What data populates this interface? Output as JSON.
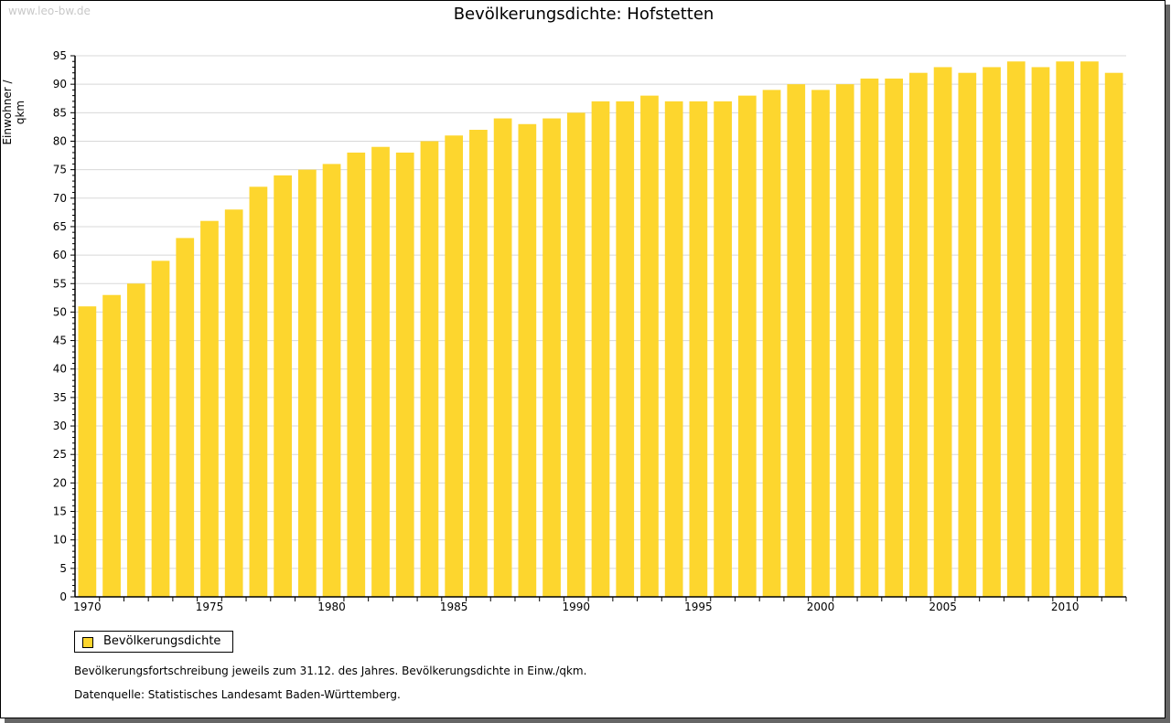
{
  "watermark": "www.leo-bw.de",
  "colors": {
    "bar": "#fdd62e",
    "grid": "#d8d8d8"
  },
  "chart_data": {
    "type": "bar",
    "title": "Bevölkerungsdichte: Hofstetten",
    "xlabel": "",
    "ylabel": "Einwohner / qkm",
    "ylim": [
      0,
      95
    ],
    "yticks": [
      0,
      5,
      10,
      15,
      20,
      25,
      30,
      35,
      40,
      45,
      50,
      55,
      60,
      65,
      70,
      75,
      80,
      85,
      90,
      95
    ],
    "xtick_labels": [
      "1970",
      "1975",
      "1980",
      "1985",
      "1990",
      "1995",
      "2000",
      "2005",
      "2010"
    ],
    "grid": true,
    "legend": [
      "Bevölkerungsdichte"
    ],
    "legend_position": "bottom-left",
    "categories": [
      1970,
      1971,
      1972,
      1973,
      1974,
      1975,
      1976,
      1977,
      1978,
      1979,
      1980,
      1981,
      1982,
      1983,
      1984,
      1985,
      1986,
      1987,
      1988,
      1989,
      1990,
      1991,
      1992,
      1993,
      1994,
      1995,
      1996,
      1997,
      1998,
      1999,
      2000,
      2001,
      2002,
      2003,
      2004,
      2005,
      2006,
      2007,
      2008,
      2009,
      2010,
      2011,
      2012
    ],
    "series": [
      {
        "name": "Bevölkerungsdichte",
        "values": [
          51,
          53,
          55,
          59,
          63,
          66,
          68,
          72,
          74,
          75,
          76,
          78,
          79,
          78,
          80,
          81,
          82,
          84,
          83,
          84,
          85,
          87,
          87,
          88,
          87,
          87,
          87,
          88,
          89,
          90,
          89,
          90,
          91,
          91,
          92,
          93,
          92,
          93,
          94,
          93,
          94,
          94,
          92
        ]
      }
    ]
  },
  "notes": [
    "Bevölkerungsfortschreibung jeweils zum 31.12. des Jahres. Bevölkerungsdichte in Einw./qkm.",
    "Datenquelle: Statistisches Landesamt Baden-Württemberg."
  ]
}
